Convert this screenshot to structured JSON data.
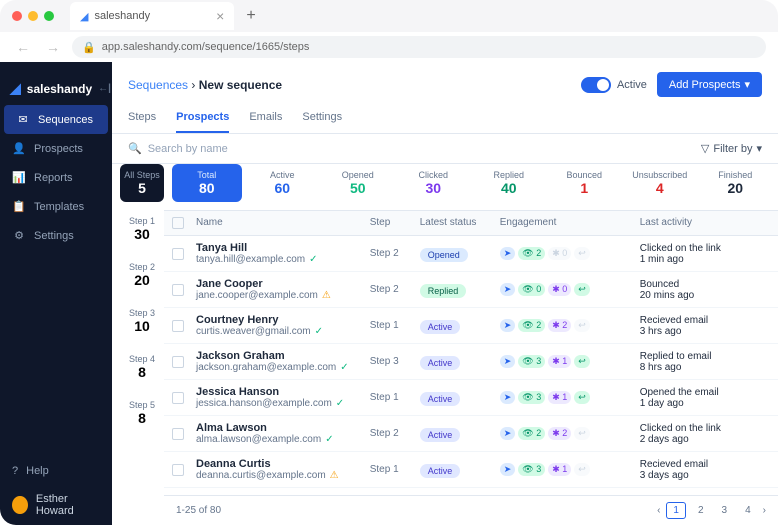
{
  "browser": {
    "tab_title": "saleshandy",
    "url": "app.saleshandy.com/sequence/1665/steps"
  },
  "brand": "saleshandy",
  "sidebar": {
    "items": [
      {
        "label": "Sequences",
        "icon": "✉"
      },
      {
        "label": "Prospects",
        "icon": "👤"
      },
      {
        "label": "Reports",
        "icon": "📊"
      },
      {
        "label": "Templates",
        "icon": "📋"
      },
      {
        "label": "Settings",
        "icon": "⚙"
      }
    ],
    "help": "Help",
    "user": "Esther Howard"
  },
  "breadcrumb": {
    "parent": "Sequences",
    "current": "New sequence"
  },
  "controls": {
    "active_label": "Active",
    "add_prospects": "Add Prospects"
  },
  "tabs": [
    "Steps",
    "Prospects",
    "Emails",
    "Settings"
  ],
  "search_placeholder": "Search by name",
  "filter_label": "Filter by",
  "steps": [
    {
      "label": "All Steps",
      "count": "5"
    },
    {
      "label": "Step 1",
      "count": "30"
    },
    {
      "label": "Step 2",
      "count": "20"
    },
    {
      "label": "Step 3",
      "count": "10"
    },
    {
      "label": "Step 4",
      "count": "8"
    },
    {
      "label": "Step 5",
      "count": "8"
    }
  ],
  "stats": [
    {
      "label": "Total",
      "count": "80",
      "class": "total"
    },
    {
      "label": "Active",
      "count": "60",
      "class": "active"
    },
    {
      "label": "Opened",
      "count": "50",
      "class": "opened"
    },
    {
      "label": "Clicked",
      "count": "30",
      "class": "clicked"
    },
    {
      "label": "Replied",
      "count": "40",
      "class": "replied"
    },
    {
      "label": "Bounced",
      "count": "1",
      "class": "bounced"
    },
    {
      "label": "Unsubscribed",
      "count": "4",
      "class": "unsubscribed"
    },
    {
      "label": "Finished",
      "count": "20",
      "class": "finished"
    }
  ],
  "columns": {
    "name": "Name",
    "step": "Step",
    "status": "Latest status",
    "engagement": "Engagement",
    "activity": "Last activity"
  },
  "rows": [
    {
      "name": "Tanya Hill",
      "email": "tanya.hill@example.com",
      "verify": "ok",
      "step": "Step 2",
      "status": "Opened",
      "status_cls": "opened",
      "engage": {
        "send": true,
        "eye": "2",
        "click": "0",
        "click_muted": true,
        "reply": false
      },
      "activity": "Clicked on the link",
      "time": "1 min ago"
    },
    {
      "name": "Jane Cooper",
      "email": "jane.cooper@example.com",
      "verify": "warn",
      "step": "Step 2",
      "status": "Replied",
      "status_cls": "replied",
      "engage": {
        "send": true,
        "eye": "0",
        "click": "0",
        "reply": true
      },
      "activity": "Bounced",
      "time": "20 mins ago"
    },
    {
      "name": "Courtney Henry",
      "email": "curtis.weaver@gmail.com",
      "verify": "ok",
      "step": "Step 1",
      "status": "Active",
      "status_cls": "active",
      "engage": {
        "send": true,
        "eye": "2",
        "click": "2",
        "reply": false
      },
      "activity": "Recieved email",
      "time": "3 hrs ago"
    },
    {
      "name": "Jackson Graham",
      "email": "jackson.graham@example.com",
      "verify": "ok",
      "step": "Step 3",
      "status": "Active",
      "status_cls": "active",
      "engage": {
        "send": true,
        "eye": "3",
        "click": "1",
        "reply": true
      },
      "activity": "Replied to email",
      "time": "8 hrs ago"
    },
    {
      "name": "Jessica Hanson",
      "email": "jessica.hanson@example.com",
      "verify": "ok",
      "step": "Step 1",
      "status": "Active",
      "status_cls": "active",
      "engage": {
        "send": true,
        "eye": "3",
        "click": "1",
        "reply": true
      },
      "activity": "Opened the email",
      "time": "1 day ago"
    },
    {
      "name": "Alma Lawson",
      "email": "alma.lawson@example.com",
      "verify": "ok",
      "step": "Step 2",
      "status": "Active",
      "status_cls": "active",
      "engage": {
        "send": true,
        "eye": "2",
        "click": "2",
        "reply": false
      },
      "activity": "Clicked on the link",
      "time": "2 days ago"
    },
    {
      "name": "Deanna Curtis",
      "email": "deanna.curtis@example.com",
      "verify": "warn",
      "step": "Step 1",
      "status": "Active",
      "status_cls": "active",
      "engage": {
        "send": true,
        "eye": "3",
        "click": "1",
        "reply": false
      },
      "activity": "Recieved email",
      "time": "3 days ago"
    }
  ],
  "pagination": {
    "range": "1-25 of 80",
    "pages": [
      "1",
      "2",
      "3",
      "4"
    ]
  }
}
